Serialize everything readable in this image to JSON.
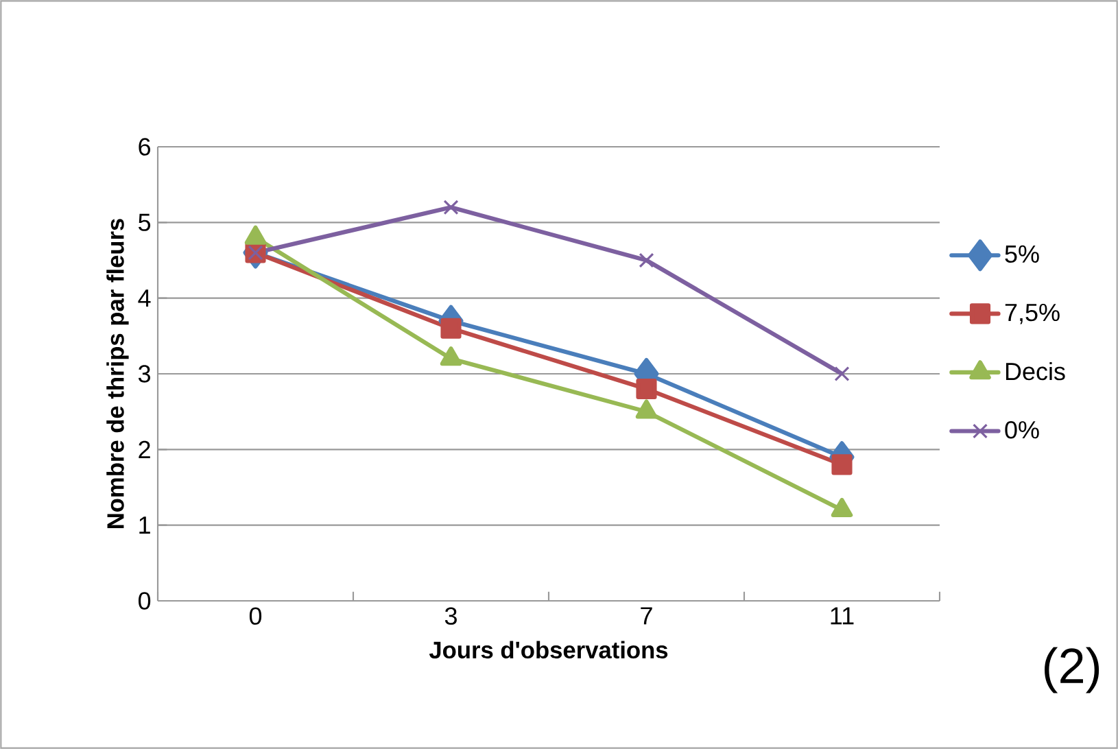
{
  "chart_data": {
    "type": "line",
    "xlabel": "Jours d'observations",
    "ylabel": "Nombre de thrips par fleurs",
    "categories": [
      "0",
      "3",
      "7",
      "11"
    ],
    "series": [
      {
        "name": "5%",
        "color": "#4a7ebb",
        "marker": "diamond",
        "values": [
          4.6,
          3.7,
          3.0,
          1.9
        ]
      },
      {
        "name": "7,5%",
        "color": "#be4b48",
        "marker": "square",
        "values": [
          4.6,
          3.6,
          2.8,
          1.8
        ]
      },
      {
        "name": "Decis",
        "color": "#98b954",
        "marker": "triangle",
        "values": [
          4.8,
          3.2,
          2.5,
          1.2
        ]
      },
      {
        "name": "0%",
        "color": "#7d60a0",
        "marker": "cross",
        "values": [
          4.6,
          5.2,
          4.5,
          3.0
        ]
      }
    ],
    "ylim": [
      0,
      6
    ],
    "yticks": [
      0,
      1,
      2,
      3,
      4,
      5,
      6
    ],
    "grid": "y",
    "legend": "right",
    "annotations": [
      "(2)"
    ]
  }
}
